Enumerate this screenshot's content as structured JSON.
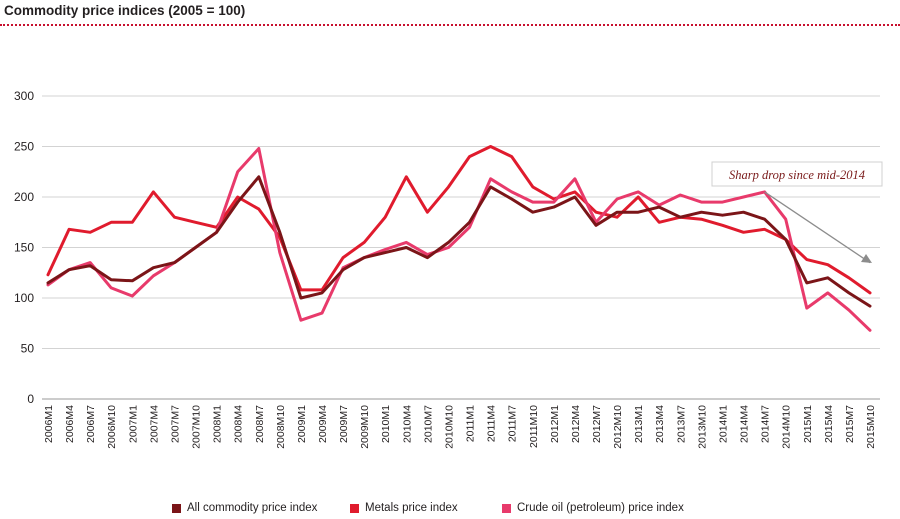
{
  "title": "Commodity price indices (2005 = 100)",
  "colors": {
    "all": "#7b1518",
    "metals": "#e01b2d",
    "oil": "#e83a6b",
    "accent": "#c8102e"
  },
  "chart_data": {
    "type": "line",
    "title": "Commodity price indices (2005 = 100)",
    "xlabel": "",
    "ylabel": "",
    "ylim": [
      0,
      300
    ],
    "yticks": [
      0,
      50,
      100,
      150,
      200,
      250,
      300
    ],
    "grid": true,
    "legend_position": "bottom",
    "x": [
      "2006M1",
      "2006M4",
      "2006M7",
      "2006M10",
      "2007M1",
      "2007M4",
      "2007M7",
      "2007M10",
      "2008M1",
      "2008M4",
      "2008M7",
      "2008M10",
      "2009M1",
      "2009M4",
      "2009M7",
      "2009M10",
      "2010M1",
      "2010M4",
      "2010M7",
      "2010M10",
      "2011M1",
      "2011M4",
      "2011M7",
      "2011M10",
      "2012M1",
      "2012M4",
      "2012M7",
      "2012M10",
      "2013M1",
      "2013M4",
      "2013M7",
      "2013M10",
      "2014M1",
      "2014M4",
      "2014M7",
      "2014M10",
      "2015M1",
      "2015M4",
      "2015M7",
      "2015M10"
    ],
    "series": [
      {
        "name": "All commodity price index",
        "key": "all",
        "values": [
          115,
          128,
          132,
          118,
          117,
          130,
          135,
          150,
          165,
          195,
          220,
          165,
          100,
          105,
          128,
          140,
          145,
          150,
          140,
          155,
          175,
          210,
          198,
          185,
          190,
          200,
          172,
          185,
          185,
          190,
          180,
          185,
          182,
          185,
          178,
          158,
          115,
          120,
          105,
          92
        ]
      },
      {
        "name": "Metals price index",
        "key": "metals",
        "values": [
          123,
          168,
          165,
          175,
          175,
          205,
          180,
          175,
          170,
          200,
          188,
          160,
          108,
          108,
          140,
          155,
          180,
          220,
          185,
          210,
          240,
          250,
          240,
          210,
          198,
          205,
          185,
          180,
          200,
          175,
          180,
          178,
          172,
          165,
          168,
          158,
          138,
          133,
          120,
          105
        ]
      },
      {
        "name": "Crude oil (petroleum) price index",
        "key": "oil",
        "values": [
          113,
          128,
          135,
          110,
          102,
          122,
          135,
          150,
          165,
          225,
          248,
          145,
          78,
          85,
          130,
          140,
          148,
          155,
          143,
          150,
          170,
          218,
          205,
          195,
          195,
          218,
          175,
          198,
          205,
          192,
          202,
          195,
          195,
          200,
          205,
          178,
          90,
          105,
          88,
          68
        ]
      }
    ],
    "annotation": "Sharp drop since mid-2014"
  }
}
